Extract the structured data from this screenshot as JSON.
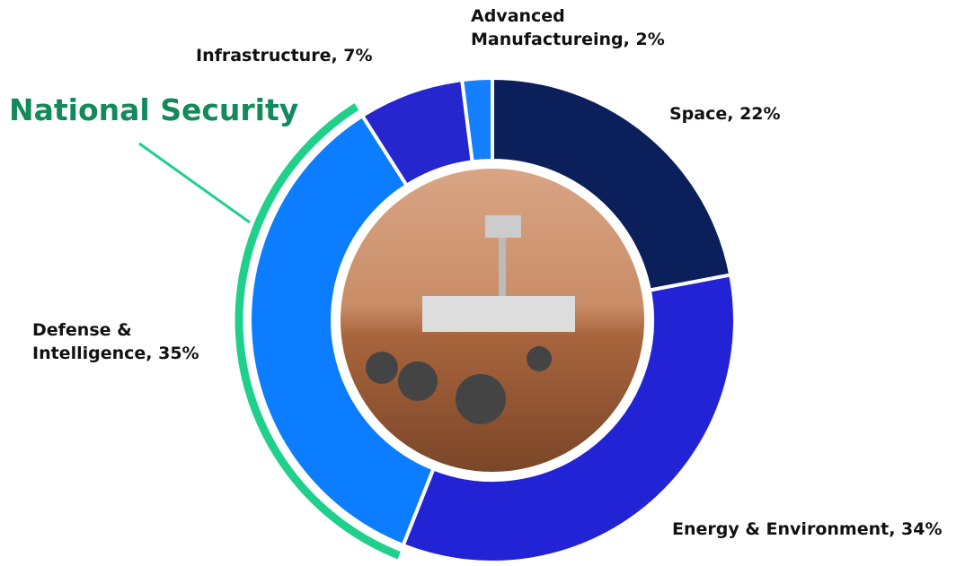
{
  "chart_data": {
    "type": "donut",
    "values": [
      22,
      34,
      35,
      7,
      2
    ],
    "value_labels": [
      "Space, 22%",
      "Energy & Environment, 34%",
      "Defense &\nIntelligence, 35%",
      "Infrastructure, 7%",
      "Advanced\nManufactureing, 2%"
    ],
    "colors": [
      "#0b1f5a",
      "#2323d6",
      "#0d7dff",
      "#2626cf",
      "#1580ff"
    ],
    "annotation": "National Security",
    "annotation_color": "#138a5c",
    "highlight_color": "#1fd08c"
  }
}
